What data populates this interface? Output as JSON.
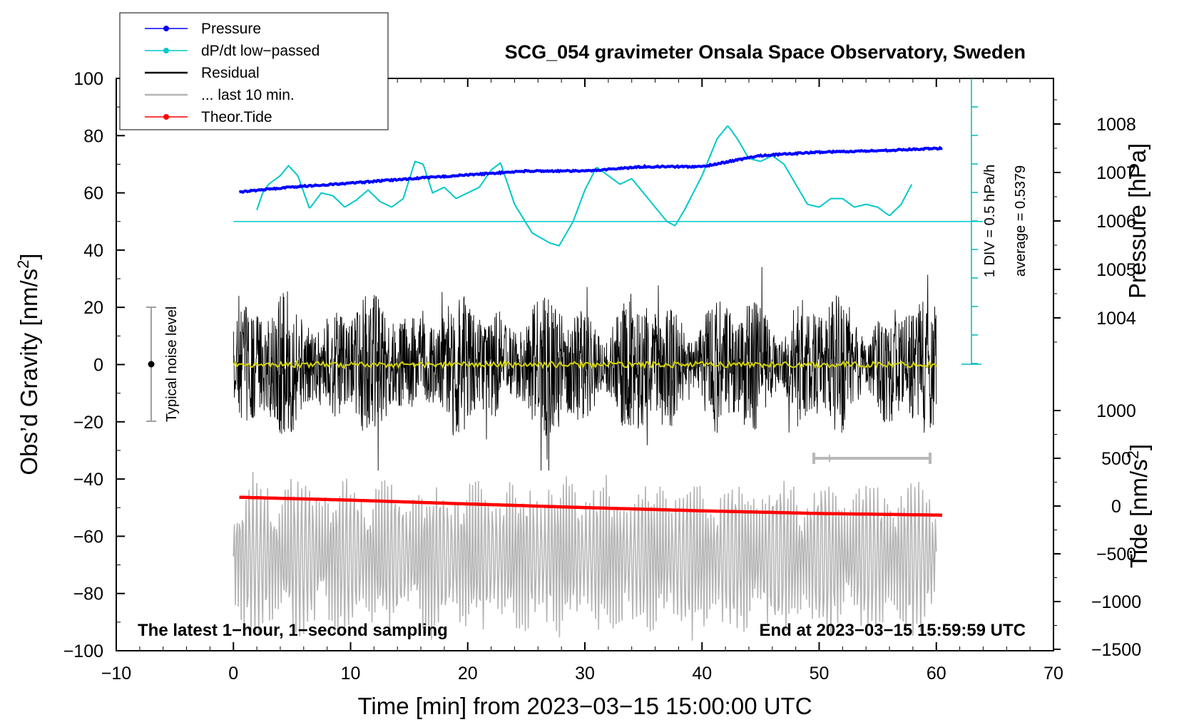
{
  "chart_data": {
    "type": "line",
    "title": "SCG_054 gravimeter Onsala Space Observatory, Sweden",
    "xlabel": "Time [min] from 2023−03−15 15:00:00 UTC",
    "ylabel_left": "Obs’d Gravity [nm/s",
    "ylabel_left_sup": "2",
    "ylabel_left_end": "]",
    "ylabel_right_top": "Pressure [hPa]",
    "ylabel_right_bottom": "Tide [nm/s",
    "ylabel_right_bottom_sup": "2",
    "ylabel_right_bottom_end": "]",
    "xlim": [
      -10,
      70
    ],
    "ylim": [
      -100,
      100
    ],
    "x_ticks": [
      -10,
      0,
      10,
      20,
      30,
      40,
      50,
      60,
      70
    ],
    "x_tick_labels": [
      "−10",
      "0",
      "10",
      "20",
      "30",
      "40",
      "50",
      "60",
      "70"
    ],
    "y_ticks": [
      -100,
      -80,
      -60,
      -40,
      -20,
      0,
      20,
      40,
      60,
      80,
      100
    ],
    "y_tick_labels": [
      "−100",
      "−80",
      "−60",
      "−40",
      "−20",
      "0",
      "20",
      "40",
      "60",
      "80",
      "100"
    ],
    "pressure_axis": {
      "ticks": [
        1004,
        1005,
        1006,
        1007,
        1008
      ],
      "tick_labels": [
        "1004",
        "1005",
        "1006",
        "1007",
        "1008"
      ]
    },
    "tide_axis": {
      "ticks": [
        1000,
        500,
        0,
        -500,
        -1000,
        -1500
      ],
      "tick_labels": [
        "1000",
        "500",
        "0",
        "−500",
        "−1000",
        "−1500"
      ]
    },
    "legend": [
      {
        "label": "Pressure",
        "color": "#0000ff",
        "marker": true
      },
      {
        "label": "dP/dt low−passed",
        "color": "#00c8c8",
        "marker": true
      },
      {
        "label": "Residual",
        "color": "#000000",
        "marker": false
      },
      {
        "label": "... last 10 min.",
        "color": "#b4b4b4",
        "marker": false
      },
      {
        "label": "Theor.Tide",
        "color": "#ff0000",
        "marker": true
      }
    ],
    "series": [
      {
        "name": "Pressure",
        "axis": "pressure",
        "color": "#0000ff",
        "x": [
          0.5,
          5,
          10,
          15,
          20,
          25,
          30,
          35,
          40,
          45,
          50,
          55,
          60.5
        ],
        "y": [
          1006.6,
          1006.7,
          1006.78,
          1006.87,
          1006.95,
          1007.03,
          1007.03,
          1007.12,
          1007.12,
          1007.35,
          1007.42,
          1007.45,
          1007.5
        ]
      },
      {
        "name": "dP/dt low−passed",
        "axis": "gravity",
        "color": "#00c8c8",
        "x": [
          2,
          2.5,
          3,
          4,
          4.7,
          5.5,
          6.5,
          7.5,
          8.5,
          9.5,
          10.5,
          11.5,
          12.5,
          13.5,
          14.5,
          15.5,
          16.2,
          17,
          18,
          19,
          20,
          21,
          22,
          22.8,
          24,
          25.5,
          27,
          27.8,
          29,
          30,
          31,
          32,
          33,
          34,
          35,
          36,
          37,
          37.7,
          38.5,
          40,
          41.3,
          42.2,
          43,
          44,
          45,
          46,
          47,
          48,
          49,
          50,
          51,
          52,
          53,
          54,
          55,
          56,
          57,
          57.9
        ],
        "y": [
          54,
          60,
          63,
          66,
          69.5,
          66,
          54.5,
          60,
          59,
          55,
          57.5,
          61,
          57,
          55,
          58,
          71,
          70,
          60,
          62,
          58,
          60,
          62,
          68,
          70.5,
          56,
          46,
          42.5,
          41.5,
          50,
          61,
          69,
          66,
          63,
          65,
          60,
          55,
          50,
          48.5,
          54,
          66,
          79,
          83.5,
          79,
          72,
          71,
          73,
          70,
          63,
          56,
          55,
          58,
          58,
          55,
          56,
          55,
          52,
          56,
          63
        ]
      },
      {
        "name": "dP/dt average",
        "axis": "gravity",
        "color": "#00c8c8",
        "x": [
          0,
          64
        ],
        "y": [
          50,
          50
        ]
      },
      {
        "name": "Residual",
        "axis": "gravity",
        "color": "#000000",
        "x_range": [
          0,
          60
        ],
        "envelope": 22,
        "extremes": [
          42,
          -37
        ]
      },
      {
        "name": "Residual smoothed",
        "axis": "gravity",
        "color": "#d2d200",
        "x_range": [
          0,
          60
        ],
        "y": 0
      },
      {
        "name": "... last 10 min.",
        "axis": "gravity",
        "color": "#b4b4b4",
        "x_range": [
          0,
          60
        ],
        "center": -67,
        "amplitude": 22,
        "extremes": [
          -33,
          -97
        ]
      },
      {
        "name": "Theor.Tide",
        "axis": "tide",
        "color": "#ff0000",
        "x": [
          0.5,
          10,
          20,
          30,
          40,
          50,
          60.5
        ],
        "y": [
          92,
          62,
          22,
          -16,
          -50,
          -78,
          -95
        ]
      }
    ],
    "annotations": {
      "bottom_left": "The latest 1−hour, 1−second sampling",
      "bottom_right": "End at 2023−03−15 15:59:59 UTC",
      "noise_label": "Typical noise level",
      "noise_range": [
        -20,
        20
      ],
      "dpdt_div": "1 DIV = 0.5 hPa/h",
      "dpdt_avg": "average = 0.5379",
      "last10_range": [
        50,
        60
      ]
    }
  }
}
